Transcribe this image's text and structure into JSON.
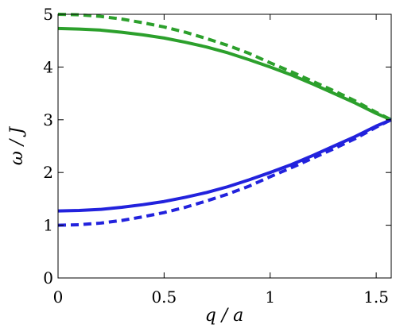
{
  "chart_data": {
    "type": "line",
    "xlabel": "q / a",
    "ylabel": "ω / J",
    "xlim": [
      0,
      1.5708
    ],
    "ylim": [
      0,
      5
    ],
    "x_ticks": [
      0,
      0.5,
      1,
      1.5
    ],
    "x_tick_labels": [
      "0",
      "0.5",
      "1",
      "1.5"
    ],
    "y_ticks": [
      0,
      1,
      2,
      3,
      4,
      5
    ],
    "y_tick_labels": [
      "0",
      "1",
      "2",
      "3",
      "4",
      "5"
    ],
    "grid": false,
    "x": [
      0,
      0.1,
      0.2,
      0.3,
      0.4,
      0.5,
      0.6,
      0.7,
      0.8,
      0.9,
      1.0,
      1.1,
      1.2,
      1.3,
      1.4,
      1.5,
      1.5708
    ],
    "series": [
      {
        "color": "#2ca02c",
        "style": "solid",
        "values": [
          4.73,
          4.72,
          4.7,
          4.66,
          4.61,
          4.55,
          4.47,
          4.38,
          4.27,
          4.14,
          4.0,
          3.85,
          3.68,
          3.5,
          3.32,
          3.12,
          3.0
        ]
      },
      {
        "color": "#2ca02c",
        "style": "dashed",
        "values": [
          5.0,
          4.99,
          4.96,
          4.91,
          4.84,
          4.76,
          4.66,
          4.54,
          4.41,
          4.26,
          4.08,
          3.91,
          3.73,
          3.55,
          3.36,
          3.14,
          3.0
        ]
      },
      {
        "color": "#2222dd",
        "style": "solid",
        "values": [
          1.27,
          1.28,
          1.3,
          1.34,
          1.39,
          1.45,
          1.53,
          1.62,
          1.73,
          1.86,
          2.0,
          2.15,
          2.32,
          2.5,
          2.68,
          2.88,
          3.0
        ]
      },
      {
        "color": "#2222dd",
        "style": "dashed",
        "values": [
          1.0,
          1.01,
          1.04,
          1.09,
          1.16,
          1.24,
          1.34,
          1.46,
          1.59,
          1.74,
          1.92,
          2.09,
          2.27,
          2.45,
          2.64,
          2.86,
          3.0
        ]
      }
    ]
  }
}
